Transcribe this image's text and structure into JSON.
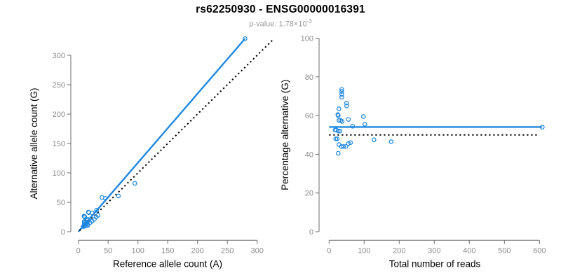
{
  "header": {
    "title": "rs62250930 - ENSG00000016391",
    "subtitle_prefix": "p-value: 1.78×10",
    "subtitle_exponent": "-3"
  },
  "colors": {
    "accent": "#1e87e0",
    "dotted_line": "#000000",
    "axis": "#6e6e6e",
    "tick_label": "#8c8c8c",
    "axis_title": "#000000",
    "subtitle": "#9a9a9a",
    "background": "#ffffff"
  },
  "chart_data": [
    {
      "type": "scatter",
      "name": "alt-vs-ref-allele-count",
      "xlabel": "Reference allele count (A)",
      "ylabel": "Alternative allele count (G)",
      "xlim": [
        0,
        325
      ],
      "ylim": [
        0,
        330
      ],
      "xticks": [
        0,
        50,
        100,
        150,
        200,
        250,
        300
      ],
      "yticks": [
        0,
        50,
        100,
        150,
        200,
        250,
        300
      ],
      "grid": false,
      "points": [
        [
          9.5,
          26.5
        ],
        [
          9.9,
          26.1
        ],
        [
          10.4,
          25.6
        ],
        [
          11,
          25
        ],
        [
          16.8,
          33.3
        ],
        [
          17.5,
          32.5
        ],
        [
          10.2,
          17.8
        ],
        [
          9.9,
          15.1
        ],
        [
          10.4,
          15.6
        ],
        [
          39.7,
          58.3
        ],
        [
          23.1,
          31.9
        ],
        [
          11.9,
          16.1
        ],
        [
          14,
          19
        ],
        [
          15.9,
          21.1
        ],
        [
          30.5,
          36.5
        ],
        [
          45.4,
          56.6
        ],
        [
          8.1,
          8.9
        ],
        [
          10,
          11
        ],
        [
          12.5,
          13.5
        ],
        [
          14.9,
          16.1
        ],
        [
          9.9,
          9.1
        ],
        [
          12,
          11
        ],
        [
          15.4,
          12.6
        ],
        [
          19.6,
          15.4
        ],
        [
          23,
          18
        ],
        [
          26.9,
          21.1
        ],
        [
          30,
          25
        ],
        [
          33,
          28
        ],
        [
          67.2,
          60.8
        ],
        [
          94.7,
          82.3
        ],
        [
          15.5,
          10.5
        ],
        [
          279.7,
          328.3
        ]
      ],
      "lines": [
        {
          "name": "fit-line",
          "style": "solid",
          "color_key": "accent",
          "from": [
            0,
            0
          ],
          "to": [
            279.7,
            328.3
          ]
        },
        {
          "name": "identity-line",
          "style": "dotted",
          "color_key": "dotted_line",
          "from": [
            2,
            2
          ],
          "to": [
            326,
            326
          ]
        }
      ]
    },
    {
      "type": "scatter",
      "name": "pct-alternative-vs-total-reads",
      "xlabel": "Total number of reads",
      "ylabel": "Percentage alternative (G)",
      "xlim": [
        0,
        625
      ],
      "ylim": [
        0,
        100
      ],
      "xticks": [
        0,
        100,
        200,
        300,
        400,
        500,
        600
      ],
      "yticks": [
        0,
        20,
        40,
        60,
        80,
        100
      ],
      "grid": false,
      "points": [
        [
          36,
          73.5
        ],
        [
          36,
          72.5
        ],
        [
          36,
          71
        ],
        [
          36,
          69.5
        ],
        [
          50,
          66.5
        ],
        [
          50,
          65
        ],
        [
          28,
          63.5
        ],
        [
          25,
          60.5
        ],
        [
          26,
          60
        ],
        [
          98,
          59.5
        ],
        [
          55,
          58
        ],
        [
          28,
          57.5
        ],
        [
          33,
          57.5
        ],
        [
          37,
          57
        ],
        [
          67,
          54.5
        ],
        [
          102,
          55.5
        ],
        [
          17,
          52.5
        ],
        [
          21,
          52.5
        ],
        [
          26,
          52
        ],
        [
          31,
          52
        ],
        [
          19,
          48
        ],
        [
          23,
          48
        ],
        [
          28,
          45
        ],
        [
          35,
          44
        ],
        [
          41,
          44
        ],
        [
          48,
          44
        ],
        [
          55,
          45.5
        ],
        [
          61,
          46
        ],
        [
          128,
          47.5
        ],
        [
          177,
          46.5
        ],
        [
          26,
          40.5
        ],
        [
          608,
          54
        ]
      ],
      "lines": [
        {
          "name": "mean-percentage-line",
          "style": "solid",
          "color_key": "accent",
          "from": [
            0,
            54.1
          ],
          "to": [
            607,
            54.1
          ]
        },
        {
          "name": "fifty-percent-line",
          "style": "dotted",
          "color_key": "dotted_line",
          "from": [
            0,
            50
          ],
          "to": [
            598,
            50
          ]
        }
      ]
    }
  ]
}
